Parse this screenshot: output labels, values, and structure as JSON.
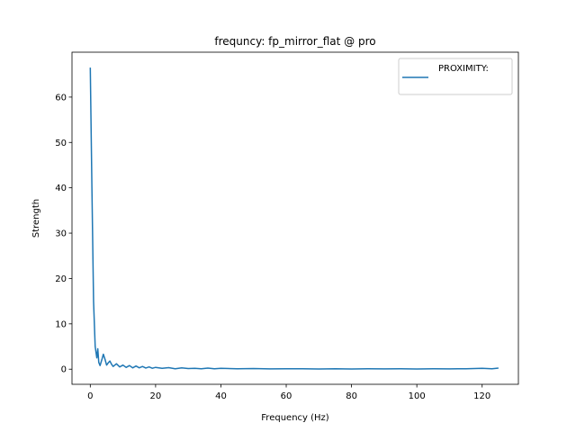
{
  "chart_data": {
    "type": "line",
    "title": "frequncy: fp_mirror_flat @ pro",
    "xlabel": "Frequency (Hz)",
    "ylabel": "Strength",
    "xlim": [
      -5.6,
      131.1
    ],
    "ylim": [
      -3.33,
      69.9
    ],
    "x_ticks": [
      0,
      20,
      40,
      60,
      80,
      100,
      120
    ],
    "y_ticks": [
      0,
      10,
      20,
      30,
      40,
      50,
      60
    ],
    "x_tick_labels": [
      "0",
      "20",
      "40",
      "60",
      "80",
      "100",
      "120"
    ],
    "y_tick_labels": [
      "0",
      "10",
      "20",
      "30",
      "40",
      "50",
      "60"
    ],
    "legend_position": "top-right",
    "grid": false,
    "series": [
      {
        "name": "PROXIMITY:",
        "color": "#1f77b4",
        "x": [
          0,
          0.5,
          1,
          1.5,
          2,
          2.3,
          2.6,
          3,
          3.5,
          4,
          4.5,
          5,
          5.5,
          6,
          6.5,
          7,
          7.5,
          8,
          9,
          10,
          11,
          12,
          13,
          14,
          15,
          16,
          17,
          18,
          19,
          20,
          22,
          24,
          26,
          28,
          30,
          32,
          34,
          36,
          38,
          40,
          45,
          50,
          55,
          60,
          65,
          70,
          75,
          80,
          85,
          90,
          95,
          100,
          105,
          110,
          115,
          120,
          123,
          125
        ],
        "y": [
          66.5,
          40,
          15,
          5,
          2.5,
          4.5,
          1.5,
          0.8,
          2,
          3.3,
          2.2,
          0.9,
          1.4,
          1.8,
          1.1,
          0.6,
          0.9,
          1.2,
          0.5,
          0.9,
          0.4,
          0.8,
          0.3,
          0.7,
          0.3,
          0.6,
          0.25,
          0.5,
          0.2,
          0.4,
          0.2,
          0.35,
          0.1,
          0.3,
          0.15,
          0.2,
          0.1,
          0.25,
          0.1,
          0.2,
          0.1,
          0.15,
          0.08,
          0.1,
          0.1,
          0.05,
          0.1,
          0.05,
          0.1,
          0.08,
          0.1,
          0.05,
          0.1,
          0.08,
          0.1,
          0.2,
          0.1,
          0.25
        ]
      }
    ]
  }
}
